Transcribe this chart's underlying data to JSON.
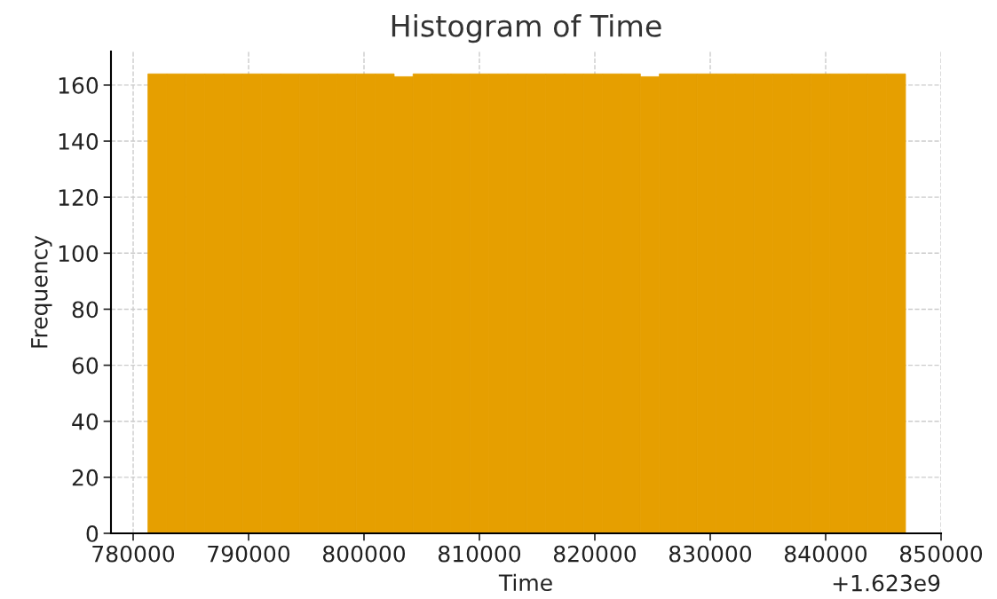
{
  "chart_data": {
    "type": "histogram",
    "title": "Histogram of Time",
    "xlabel": "Time",
    "ylabel": "Frequency",
    "bins": [
      781280,
      782921,
      784562,
      786203,
      787844,
      789485,
      791126,
      792767,
      794408,
      796049,
      797690,
      799331,
      800972,
      802613,
      804254,
      805895,
      807536,
      809177,
      810818,
      812459,
      814100,
      815741,
      817382,
      819023,
      820664,
      822305,
      823946,
      825587,
      827228,
      828869,
      830510,
      832151,
      833792,
      835433,
      837074,
      838715,
      840356,
      841997,
      843638,
      845279,
      846920
    ],
    "values": [
      164,
      164,
      164,
      164,
      164,
      164,
      164,
      164,
      164,
      164,
      164,
      164,
      164,
      163,
      164,
      164,
      164,
      164,
      164,
      164,
      164,
      164,
      164,
      164,
      164,
      164,
      163,
      164,
      164,
      164,
      164,
      164,
      164,
      164,
      164,
      164,
      164,
      164,
      164,
      164
    ],
    "color": "#e69f00",
    "xlim": [
      778077,
      850000
    ],
    "xticks": [
      780000,
      790000,
      800000,
      810000,
      820000,
      830000,
      840000,
      850000
    ],
    "ylim": [
      0,
      172
    ],
    "yticks": [
      0,
      20,
      40,
      60,
      80,
      100,
      120,
      140,
      160
    ],
    "grid": true,
    "annotations": [
      "+1.623e9"
    ]
  }
}
